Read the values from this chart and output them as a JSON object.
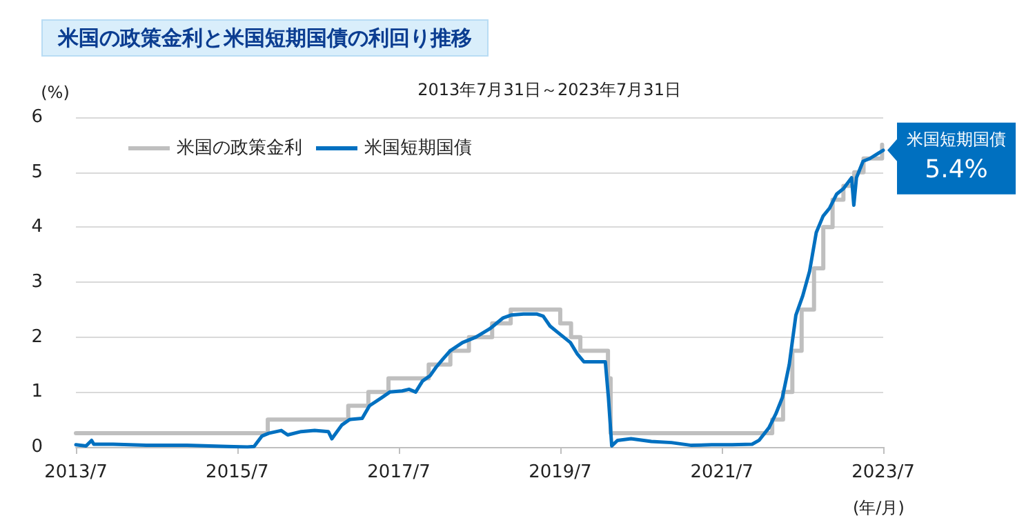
{
  "chart_data": {
    "type": "line",
    "title": "米国の政策金利と米国短期国債の利回り推移",
    "subtitle": "2013年7月31日～2023年7月31日",
    "ylabel": "(%)",
    "xlabel": "(年/月)",
    "xlim": [
      "2013-07-31",
      "2023-07-31"
    ],
    "xticks": [
      {
        "value": "2013-07-31",
        "label": "2013/7"
      },
      {
        "value": "2015-07-31",
        "label": "2015/7"
      },
      {
        "value": "2017-07-31",
        "label": "2017/7"
      },
      {
        "value": "2019-07-31",
        "label": "2019/7"
      },
      {
        "value": "2021-07-31",
        "label": "2021/7"
      },
      {
        "value": "2023-07-31",
        "label": "2023/7"
      }
    ],
    "ylim": [
      0,
      6
    ],
    "yticks": [
      0,
      1,
      2,
      3,
      4,
      5,
      6
    ],
    "grid": "y",
    "legend": "top left",
    "marker": "none",
    "line_style": "solid",
    "series": [
      {
        "name": "米国の政策金利",
        "type": "step",
        "color": "#bfbfbf",
        "x": [
          "2013-07-31",
          "2015-12-16",
          "2016-12-14",
          "2017-03-15",
          "2017-06-14",
          "2017-12-13",
          "2018-03-21",
          "2018-06-13",
          "2018-09-26",
          "2018-12-19",
          "2019-07-31",
          "2019-09-18",
          "2019-10-30",
          "2020-03-03",
          "2020-03-15",
          "2022-03-16",
          "2022-05-04",
          "2022-06-15",
          "2022-07-27",
          "2022-09-21",
          "2022-11-02",
          "2022-12-14",
          "2023-02-01",
          "2023-03-22",
          "2023-05-03",
          "2023-07-26"
        ],
        "values": [
          0.25,
          0.5,
          0.75,
          1.0,
          1.25,
          1.5,
          1.75,
          2.0,
          2.25,
          2.5,
          2.25,
          2.0,
          1.75,
          1.25,
          0.25,
          0.5,
          1.0,
          1.75,
          2.5,
          3.25,
          4.0,
          4.5,
          4.75,
          5.0,
          5.25,
          5.5
        ]
      },
      {
        "name": "米国短期国債",
        "color": "#0070c0",
        "x": [
          "2013-07-31",
          "2013-09-15",
          "2013-10-10",
          "2013-10-20",
          "2014-01-15",
          "2014-06-15",
          "2014-12-15",
          "2015-06-15",
          "2015-09-15",
          "2015-10-15",
          "2015-11-20",
          "2015-12-20",
          "2016-02-15",
          "2016-03-15",
          "2016-05-15",
          "2016-07-15",
          "2016-09-15",
          "2016-10-01",
          "2016-11-15",
          "2016-12-20",
          "2017-02-15",
          "2017-03-20",
          "2017-05-15",
          "2017-06-20",
          "2017-08-15",
          "2017-09-15",
          "2017-10-15",
          "2017-11-15",
          "2017-12-20",
          "2018-01-15",
          "2018-02-15",
          "2018-03-20",
          "2018-05-15",
          "2018-07-15",
          "2018-09-15",
          "2018-11-15",
          "2018-12-20",
          "2019-02-15",
          "2019-04-15",
          "2019-05-15",
          "2019-06-15",
          "2019-07-15",
          "2019-08-15",
          "2019-09-15",
          "2019-10-15",
          "2019-11-15",
          "2020-01-15",
          "2020-02-20",
          "2020-03-05",
          "2020-03-20",
          "2020-04-15",
          "2020-06-15",
          "2020-09-15",
          "2020-12-15",
          "2021-03-15",
          "2021-06-15",
          "2021-09-15",
          "2021-12-15",
          "2022-01-15",
          "2022-03-01",
          "2022-04-01",
          "2022-05-01",
          "2022-06-01",
          "2022-07-01",
          "2022-08-01",
          "2022-09-01",
          "2022-10-01",
          "2022-11-01",
          "2022-12-01",
          "2023-01-01",
          "2023-02-01",
          "2023-03-10",
          "2023-03-20",
          "2023-04-01",
          "2023-05-01",
          "2023-06-01",
          "2023-07-31"
        ],
        "values": [
          0.04,
          0.02,
          0.12,
          0.05,
          0.05,
          0.03,
          0.03,
          0.01,
          0.0,
          0.01,
          0.2,
          0.25,
          0.3,
          0.22,
          0.28,
          0.3,
          0.28,
          0.15,
          0.4,
          0.5,
          0.52,
          0.75,
          0.9,
          1.0,
          1.02,
          1.05,
          1.0,
          1.2,
          1.3,
          1.45,
          1.6,
          1.75,
          1.9,
          2.0,
          2.15,
          2.35,
          2.4,
          2.42,
          2.42,
          2.38,
          2.2,
          2.1,
          2.0,
          1.9,
          1.7,
          1.55,
          1.55,
          1.55,
          0.9,
          0.02,
          0.12,
          0.15,
          0.1,
          0.08,
          0.03,
          0.04,
          0.04,
          0.05,
          0.12,
          0.35,
          0.6,
          0.9,
          1.5,
          2.4,
          2.75,
          3.2,
          3.9,
          4.2,
          4.35,
          4.6,
          4.7,
          4.9,
          4.4,
          4.9,
          5.2,
          5.25,
          5.4
        ]
      }
    ],
    "annotations": [
      {
        "text": "米国短期国債",
        "x": "2023-07-31",
        "y": 5.4
      },
      {
        "text": "5.4%",
        "x": "2023-07-31",
        "y": 5.4
      }
    ]
  }
}
